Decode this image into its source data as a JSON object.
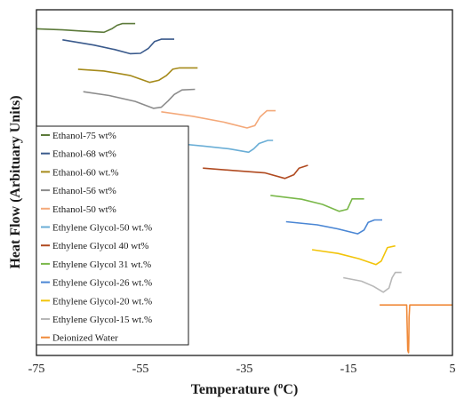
{
  "chart_data": {
    "type": "line",
    "title": "",
    "xlabel": "Temperature (oC)",
    "xlabel_parts": [
      "Temperature (",
      "o",
      "C)"
    ],
    "ylabel": "Heat Flow (Arbituary Units)",
    "xlim": [
      -75,
      5
    ],
    "xticks": [
      -75,
      -55,
      -35,
      -15,
      5
    ],
    "ylim": [
      0,
      100
    ],
    "grid": false,
    "y_ticks_shown": false,
    "legend_position": "left",
    "series": [
      {
        "name": "Ethanol-75 wt%",
        "color": "#5c7a3a",
        "x": [
          -75,
          -70,
          -66,
          -62,
          -60.5,
          -59.5,
          -58.5,
          -56
        ],
        "y": [
          94.5,
          94.2,
          93.8,
          93.5,
          94.5,
          95.5,
          96,
          96
        ]
      },
      {
        "name": "Ethanol-68 wt%",
        "color": "#3a5a8c",
        "x": [
          -70,
          -64,
          -60,
          -57,
          -55,
          -53.5,
          -52.3,
          -51,
          -48.5
        ],
        "y": [
          91.3,
          89.8,
          88.5,
          87.3,
          87.4,
          88.8,
          90.8,
          91.5,
          91.5
        ]
      },
      {
        "name": "Ethanol-60 wt.%",
        "color": "#a58a1a",
        "x": [
          -67,
          -62,
          -57,
          -53.2,
          -51.5,
          -50,
          -48.8,
          -47.5,
          -44
        ],
        "y": [
          82.8,
          82.3,
          81,
          79,
          79.6,
          81,
          82.8,
          83.2,
          83.2
        ]
      },
      {
        "name": "Ethanol-56 wt%",
        "color": "#8c8c8c",
        "x": [
          -66,
          -61,
          -56,
          -52.5,
          -51,
          -49.7,
          -48.5,
          -47,
          -44.5
        ],
        "y": [
          76.3,
          75.2,
          73.5,
          71.5,
          71.8,
          73.6,
          75.5,
          76.8,
          77
        ]
      },
      {
        "name": "Ethanol-50 wt%",
        "color": "#f4a97a",
        "x": [
          -51,
          -45,
          -39,
          -34.5,
          -33,
          -32,
          -30.7,
          -29
        ],
        "y": [
          70.5,
          69.2,
          67.5,
          65.8,
          66.5,
          69,
          70.8,
          70.8
        ]
      },
      {
        "name": "Ethylene Glycol-50 wt.%",
        "color": "#6aaed6",
        "x": [
          -48,
          -43,
          -38,
          -34.2,
          -33.2,
          -32.2,
          -30.5,
          -29.5
        ],
        "y": [
          61.3,
          60.6,
          59.8,
          58.8,
          59.8,
          61.3,
          62.2,
          62.2
        ]
      },
      {
        "name": "Ethylene Glycol 40 wt%",
        "color": "#b04a20",
        "x": [
          -43,
          -37,
          -31,
          -27.2,
          -25.5,
          -24.5,
          -22.8
        ],
        "y": [
          54.2,
          53.5,
          52.8,
          51.2,
          52.3,
          54.2,
          55
        ]
      },
      {
        "name": "Ethylene Glycol 31 wt.%",
        "color": "#7ab84a",
        "x": [
          -30,
          -24,
          -20,
          -16.8,
          -15.2,
          -14.3,
          -12
        ],
        "y": [
          46.3,
          45.2,
          43.7,
          41.7,
          42.3,
          45.3,
          45.3
        ]
      },
      {
        "name": "Ethylene Glycol-26 wt.%",
        "color": "#4a86d4",
        "x": [
          -27,
          -21,
          -17,
          -13.2,
          -12,
          -11.2,
          -10,
          -8.5
        ],
        "y": [
          38.7,
          37.8,
          36.6,
          35.2,
          36.3,
          38.5,
          39.2,
          39.2
        ]
      },
      {
        "name": "Ethylene Glycol-20 wt.%",
        "color": "#f2c40a",
        "x": [
          -22,
          -17,
          -13,
          -9.7,
          -8.7,
          -7.5,
          -6
        ],
        "y": [
          30.6,
          29.5,
          28,
          26.3,
          27.3,
          31.2,
          31.7
        ]
      },
      {
        "name": "Ethylene Glycol-15 wt.%",
        "color": "#b8b8b8",
        "x": [
          -16,
          -12.5,
          -10.2,
          -8.3,
          -7.2,
          -6.6,
          -6,
          -4.8
        ],
        "y": [
          22.5,
          21.5,
          20,
          18.3,
          19.5,
          22.5,
          24,
          24
        ]
      },
      {
        "name": "Deionized Water",
        "color": "#f08a3a",
        "x": [
          -9,
          -5.5,
          -4.5,
          -3.8,
          -3.7,
          -3.6,
          -3.45,
          -3.4,
          -3.35,
          -3.2,
          -2.5,
          0,
          5
        ],
        "y": [
          14.6,
          14.6,
          14.6,
          14.6,
          8,
          1.5,
          0.8,
          4,
          11,
          14.6,
          14.6,
          14.6,
          14.6
        ]
      }
    ]
  }
}
